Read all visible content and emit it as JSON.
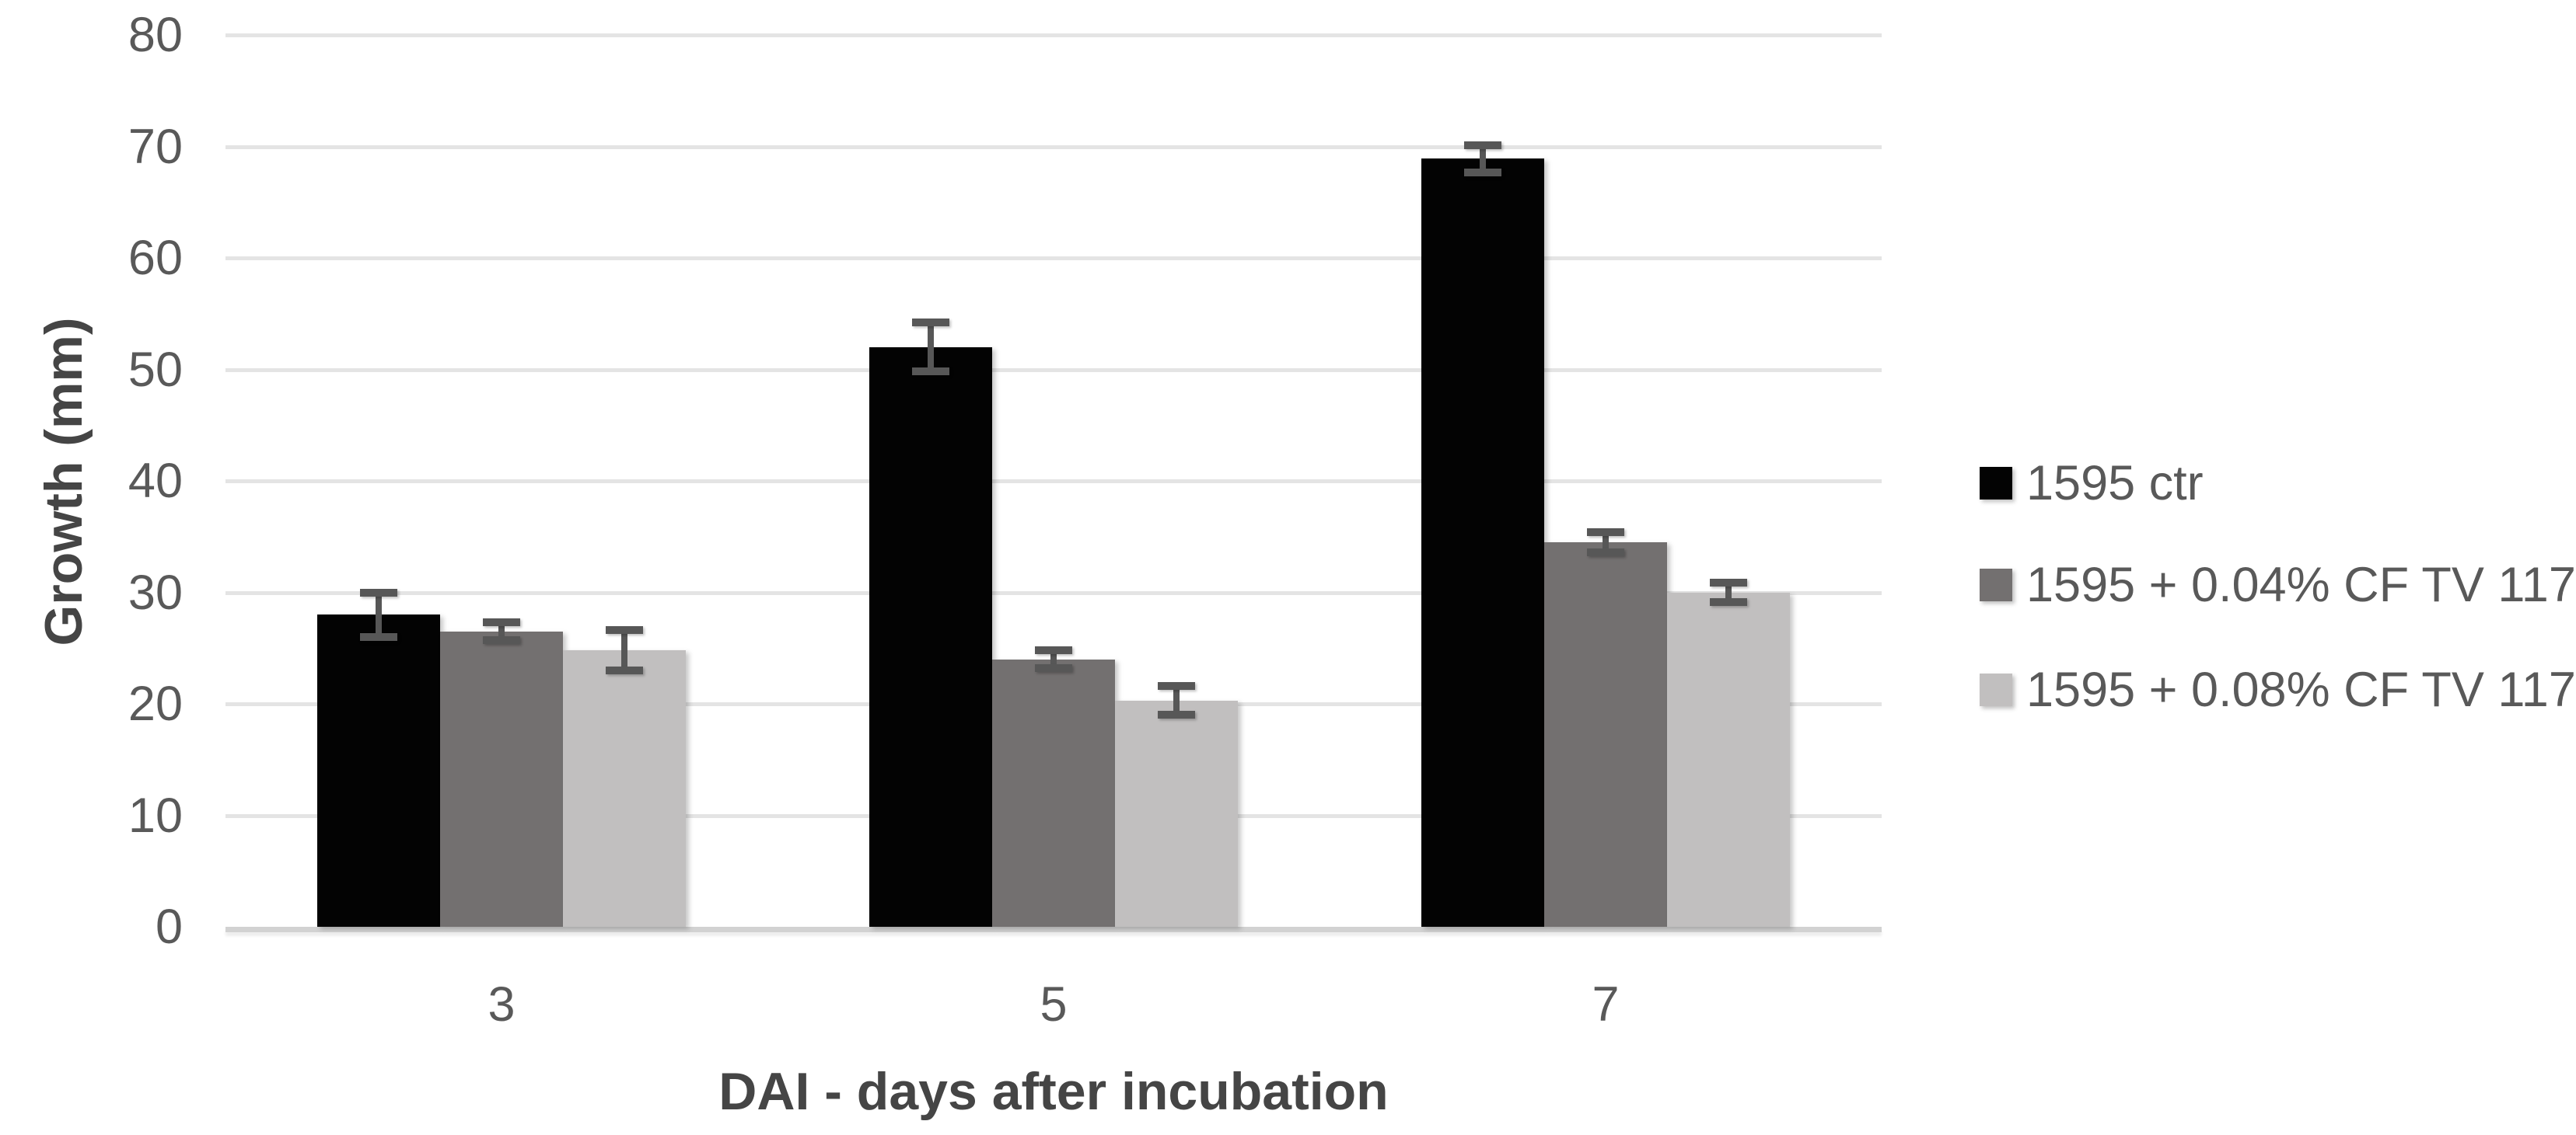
{
  "chart_data": {
    "type": "bar",
    "title": "",
    "xlabel": "DAI - days after incubation",
    "ylabel": "Growth (mm)",
    "categories": [
      "3",
      "5",
      "7"
    ],
    "series": [
      {
        "name": "1595 ctr",
        "color": "#030303",
        "values": [
          28.0,
          52.0,
          68.9
        ],
        "errors": [
          2.0,
          2.2,
          1.2
        ]
      },
      {
        "name": "1595 + 0.04% CF TV 117",
        "color": "#737070",
        "values": [
          26.5,
          24.0,
          34.5
        ],
        "errors": [
          0.8,
          0.8,
          0.9
        ]
      },
      {
        "name": "1595 + 0.08% CF TV 117",
        "color": "#c1bfbf",
        "values": [
          24.8,
          20.3,
          30.0
        ],
        "errors": [
          1.8,
          1.3,
          0.9
        ]
      }
    ],
    "y_ticks": [
      0,
      10,
      20,
      30,
      40,
      50,
      60,
      70,
      80
    ],
    "ylim": [
      0,
      80
    ],
    "grid": true,
    "legend_position": "right",
    "colors": {
      "error_bar": "#575757",
      "gridline": "#e4e4e4",
      "axis_line": "#d2d2d2",
      "tick_text": "#595959",
      "axis_title_text": "#454545",
      "background": "#ffffff"
    }
  }
}
